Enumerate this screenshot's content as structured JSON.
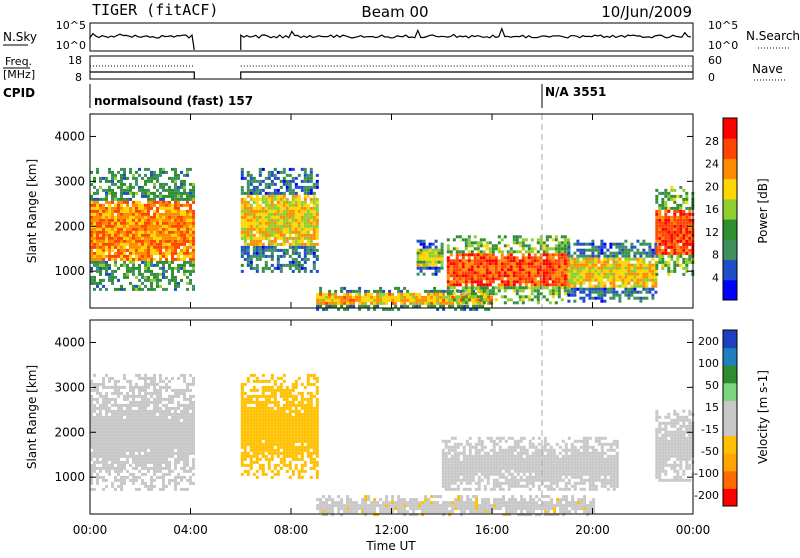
{
  "header": {
    "radar": "TIGER (fitACF)",
    "beam": "Beam 00",
    "date": "10/Jun/2009"
  },
  "strip1": {
    "left_label": "N.Sky",
    "left_ticks": [
      "10^5",
      "10^0"
    ],
    "right_ticks": [
      "10^5",
      "10^0"
    ],
    "right_label": "N.Search"
  },
  "strip2": {
    "left_label_1": "Freq.",
    "left_label_2": "[MHz]",
    "left_ticks": [
      "18",
      "8"
    ],
    "right_ticks": [
      "60",
      "0"
    ],
    "right_label": "Nave"
  },
  "cpid": {
    "label": "CPID",
    "mode1": "normalsound (fast) 157",
    "mode2": "N/A 3551"
  },
  "colors": {
    "power": [
      "#0000ff",
      "#1f4fc8",
      "#3f8f5f",
      "#2f8f2f",
      "#8fcf2f",
      "#ffd700",
      "#ff8c00",
      "#ff4500",
      "#ff0000"
    ],
    "velocity": [
      "#ff0000",
      "#ff6a00",
      "#ffa500",
      "#ffc000",
      "#c8c8c8",
      "#c8c8c8",
      "#7cd67c",
      "#2e8b2e",
      "#1f7fbf",
      "#1f3fbf"
    ],
    "ground": "#c8c8c8"
  },
  "chart_data": [
    {
      "type": "heatmap",
      "name": "power",
      "ylabel": "Slant Range [km]",
      "yticks": [
        "1000",
        "2000",
        "3000",
        "4000"
      ],
      "ylim": [
        180,
        4500
      ],
      "xlim": [
        0,
        24
      ],
      "colorbar_label": "Power [dB]",
      "colorbar_ticks": [
        "4",
        "8",
        "12",
        "16",
        "20",
        "24",
        "28"
      ],
      "colorbar_range": [
        0,
        32
      ],
      "regions": [
        {
          "t0": 0.0,
          "t1": 4.1,
          "r0": 600,
          "r1": 3300,
          "v": 18
        },
        {
          "t0": 6.0,
          "t1": 9.0,
          "r0": 1000,
          "r1": 3300,
          "v": 14
        },
        {
          "t0": 9.0,
          "t1": 16.0,
          "r0": 180,
          "r1": 650,
          "v": 16
        },
        {
          "t0": 13.0,
          "t1": 14.0,
          "r0": 950,
          "r1": 1700,
          "v": 12
        },
        {
          "t0": 14.2,
          "t1": 19.0,
          "r0": 300,
          "r1": 1800,
          "v": 22
        },
        {
          "t0": 19.0,
          "t1": 22.5,
          "r0": 300,
          "r1": 1700,
          "v": 14
        },
        {
          "t0": 22.5,
          "t1": 24.0,
          "r0": 900,
          "r1": 2900,
          "v": 22
        }
      ]
    },
    {
      "type": "heatmap",
      "name": "velocity",
      "ylabel": "Slant Range [km]",
      "yticks": [
        "1000",
        "2000",
        "3000",
        "4000"
      ],
      "ylim": [
        180,
        4500
      ],
      "xlim": [
        0,
        24
      ],
      "xlabel": "Time UT",
      "xticks": [
        "00:00",
        "04:00",
        "08:00",
        "12:00",
        "16:00",
        "20:00",
        "00:00"
      ],
      "colorbar_label": "Velocity [m s-1]",
      "colorbar_ticks": [
        "200",
        "100",
        "50",
        "15",
        "-15",
        "-50",
        "-100",
        "-200"
      ],
      "regions": [
        {
          "t0": 0.0,
          "t1": 4.1,
          "r0": 700,
          "r1": 3300,
          "v": 0
        },
        {
          "t0": 6.0,
          "t1": 9.0,
          "r0": 1000,
          "r1": 3300,
          "v": -80
        },
        {
          "t0": 9.0,
          "t1": 20.0,
          "r0": 180,
          "r1": 600,
          "v": -40
        },
        {
          "t0": 14.0,
          "t1": 21.0,
          "r0": 700,
          "r1": 1900,
          "v": 0
        },
        {
          "t0": 22.5,
          "t1": 24.0,
          "r0": 900,
          "r1": 2500,
          "v": 0
        }
      ]
    }
  ]
}
